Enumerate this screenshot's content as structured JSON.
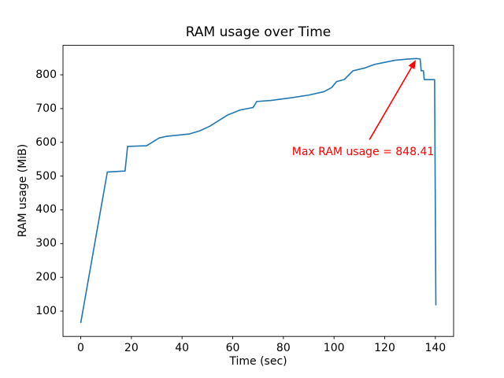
{
  "figure": {
    "background": "#ffffff",
    "spine_color": "#000000",
    "text_color": "#000000"
  },
  "chart_data": {
    "type": "line",
    "title": "RAM usage over Time",
    "xlabel": "Time (sec)",
    "ylabel": "RAM usage (MiB)",
    "xlim": [
      -7,
      147.2
    ],
    "ylim": [
      25,
      887.3
    ],
    "xticks": [
      0,
      20,
      40,
      60,
      80,
      100,
      120,
      140
    ],
    "yticks": [
      100,
      200,
      300,
      400,
      500,
      600,
      700,
      800
    ],
    "grid": false,
    "legend": null,
    "series": [
      {
        "name": "RAM usage",
        "color": "#1f77b4",
        "x": [
          0,
          10.5,
          17.5,
          18.5,
          26,
          31,
          34,
          43,
          47,
          51,
          55,
          58,
          63,
          68,
          69.5,
          75,
          83,
          90,
          96,
          99,
          101,
          104,
          107.5,
          112,
          116,
          120,
          124,
          128,
          131,
          132.5,
          134,
          134.4,
          135.3,
          135.6,
          139.7,
          140.2
        ],
        "y": [
          65,
          512,
          515,
          588,
          590,
          613,
          618,
          625,
          634,
          648,
          667,
          681,
          696,
          703,
          721,
          724,
          732,
          740,
          750,
          762,
          780,
          786,
          812,
          820,
          831,
          837,
          843,
          846,
          847.5,
          848.41,
          847,
          812,
          812,
          786,
          786,
          117
        ]
      }
    ],
    "annotation": {
      "text": "Max RAM usage = 848.41",
      "color": "#ff0000",
      "max_value": 848.41,
      "text_xy": [
        83.4,
        586.6
      ],
      "arrow_start": [
        114,
        608
      ],
      "arrow_tip": [
        132.3,
        844
      ]
    }
  }
}
